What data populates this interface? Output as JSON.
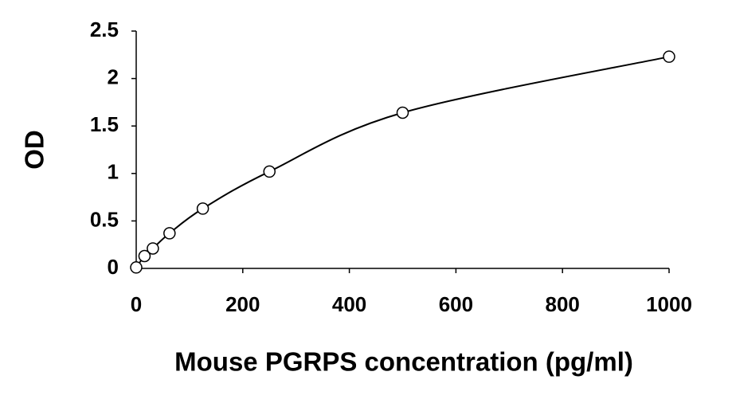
{
  "chart_data": {
    "type": "scatter",
    "x_label": "Mouse PGRPS concentration (pg/ml)",
    "y_label": "OD",
    "x": [
      0,
      15.6,
      31.25,
      62.5,
      125,
      250,
      500,
      1000
    ],
    "values": [
      0.01,
      0.13,
      0.21,
      0.37,
      0.63,
      1.02,
      1.64,
      2.23
    ],
    "color": "#000000",
    "smooth_line": true,
    "xlim": [
      0,
      1000
    ],
    "xticks": [
      0,
      200,
      400,
      600,
      800,
      1000
    ],
    "ylim": [
      0,
      2.5
    ],
    "yticks": [
      0,
      0.5,
      1,
      1.5,
      2,
      2.5
    ],
    "grid": false
  }
}
